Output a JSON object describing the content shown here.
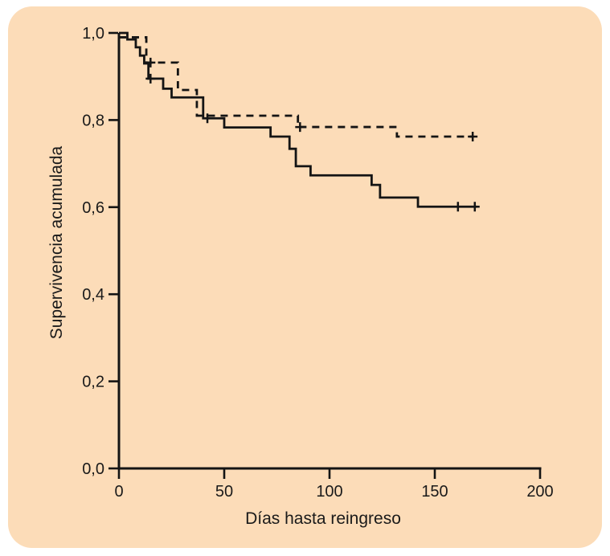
{
  "figure": {
    "page_background": "#FFFFFF",
    "card_background": "#FCDCB8",
    "line_color": "#141414",
    "text_color": "#1A1A1A"
  },
  "chart_data": {
    "type": "line",
    "variant": "kaplan-meier-step",
    "title": "",
    "xlabel": "Días hasta reingreso",
    "ylabel": "Supervivencia acumulada",
    "xlim": [
      0,
      200
    ],
    "ylim": [
      0.0,
      1.0
    ],
    "grid": false,
    "legend": "none",
    "xticks": [
      {
        "v": 0,
        "label": "0"
      },
      {
        "v": 50,
        "label": "50"
      },
      {
        "v": 100,
        "label": "100"
      },
      {
        "v": 150,
        "label": "150"
      },
      {
        "v": 200,
        "label": "200"
      }
    ],
    "yticks": [
      {
        "v": 0.0,
        "label": "0,0"
      },
      {
        "v": 0.2,
        "label": "0,2"
      },
      {
        "v": 0.4,
        "label": "0,4"
      },
      {
        "v": 0.6,
        "label": "0,6"
      },
      {
        "v": 0.8,
        "label": "0,8"
      },
      {
        "v": 1.0,
        "label": "1,0"
      }
    ],
    "series": [
      {
        "name": "solid",
        "line_style": "solid",
        "color": "#141414",
        "steps": [
          [
            0,
            1.0
          ],
          [
            4,
            0.985
          ],
          [
            8,
            0.967
          ],
          [
            10,
            0.948
          ],
          [
            12,
            0.93
          ],
          [
            14,
            0.895
          ],
          [
            21,
            0.872
          ],
          [
            25,
            0.852
          ],
          [
            40,
            0.804
          ],
          [
            50,
            0.783
          ],
          [
            72,
            0.762
          ],
          [
            81,
            0.734
          ],
          [
            84,
            0.694
          ],
          [
            91,
            0.673
          ],
          [
            120,
            0.651
          ],
          [
            124,
            0.622
          ],
          [
            142,
            0.601
          ]
        ],
        "end_day": 170,
        "censors": [
          [
            15,
            0.895
          ],
          [
            42,
            0.804
          ],
          [
            161,
            0.601
          ],
          [
            169,
            0.601
          ]
        ]
      },
      {
        "name": "dashed",
        "line_style": "dashed",
        "color": "#141414",
        "steps": [
          [
            0,
            0.99
          ],
          [
            13,
            0.932
          ],
          [
            28,
            0.869
          ],
          [
            37,
            0.81
          ],
          [
            85,
            0.784
          ],
          [
            132,
            0.762
          ]
        ],
        "end_day": 168,
        "censors": [
          [
            15,
            0.932
          ],
          [
            86,
            0.784
          ],
          [
            168,
            0.762
          ]
        ]
      }
    ]
  }
}
